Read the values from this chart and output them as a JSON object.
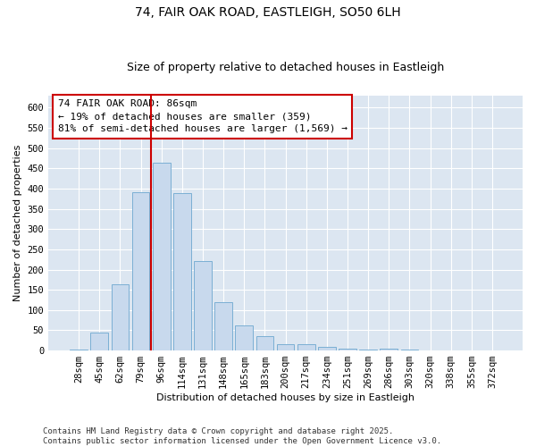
{
  "title1": "74, FAIR OAK ROAD, EASTLEIGH, SO50 6LH",
  "title2": "Size of property relative to detached houses in Eastleigh",
  "xlabel": "Distribution of detached houses by size in Eastleigh",
  "ylabel": "Number of detached properties",
  "categories": [
    "28sqm",
    "45sqm",
    "62sqm",
    "79sqm",
    "96sqm",
    "114sqm",
    "131sqm",
    "148sqm",
    "165sqm",
    "183sqm",
    "200sqm",
    "217sqm",
    "234sqm",
    "251sqm",
    "269sqm",
    "286sqm",
    "303sqm",
    "320sqm",
    "338sqm",
    "355sqm",
    "372sqm"
  ],
  "values": [
    2,
    45,
    163,
    390,
    463,
    388,
    220,
    120,
    62,
    35,
    15,
    15,
    8,
    5,
    2,
    5,
    2,
    0,
    0,
    0,
    0
  ],
  "bar_color": "#c8d9ed",
  "bar_edge_color": "#7bafd4",
  "vline_x_index": 3.5,
  "vline_color": "#cc0000",
  "annotation_text": "74 FAIR OAK ROAD: 86sqm\n← 19% of detached houses are smaller (359)\n81% of semi-detached houses are larger (1,569) →",
  "annotation_box_color": "#ffffff",
  "annotation_box_edge": "#cc0000",
  "ylim": [
    0,
    630
  ],
  "yticks": [
    0,
    50,
    100,
    150,
    200,
    250,
    300,
    350,
    400,
    450,
    500,
    550,
    600
  ],
  "background_color": "#dce6f1",
  "footer_text": "Contains HM Land Registry data © Crown copyright and database right 2025.\nContains public sector information licensed under the Open Government Licence v3.0.",
  "title1_fontsize": 10,
  "title2_fontsize": 9,
  "axis_label_fontsize": 8,
  "tick_fontsize": 7.5,
  "annotation_fontsize": 8,
  "footer_fontsize": 6.5
}
